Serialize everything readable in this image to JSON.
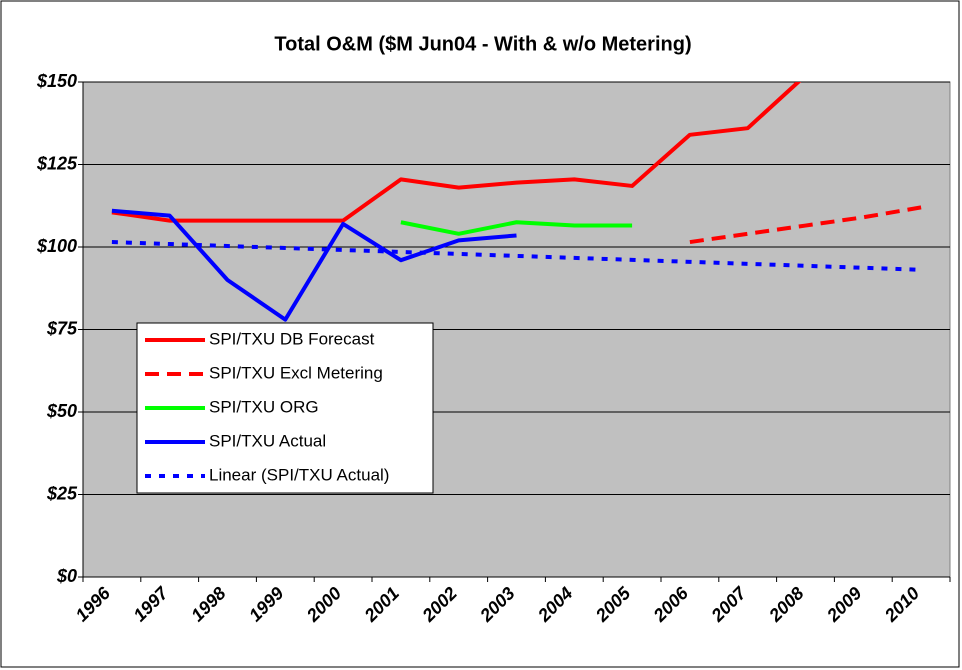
{
  "chart_data": {
    "type": "line",
    "title": "Total O&M ($M Jun04 - With & w/o Metering)",
    "categories": [
      "1996",
      "1997",
      "1998",
      "1999",
      "2000",
      "2001",
      "2002",
      "2003",
      "2004",
      "2005",
      "2006",
      "2007",
      "2008",
      "2009",
      "2010"
    ],
    "series": [
      {
        "name": "SPI/TXU DB Forecast",
        "color": "#ff0000",
        "dash": "solid",
        "values": [
          110.5,
          108,
          108,
          108,
          108,
          120.5,
          118,
          119.5,
          120.5,
          118.5,
          134,
          136,
          152,
          null,
          null
        ]
      },
      {
        "name": "SPI/TXU Excl Metering",
        "color": "#ff0000",
        "dash": "dashed",
        "values": [
          null,
          null,
          null,
          null,
          null,
          null,
          null,
          null,
          null,
          null,
          101.5,
          104,
          106.5,
          109,
          112
        ]
      },
      {
        "name": "SPI/TXU ORG",
        "color": "#00ff00",
        "dash": "solid",
        "values": [
          null,
          null,
          null,
          null,
          null,
          107.5,
          104,
          107.5,
          106.5,
          106.5,
          null,
          null,
          null,
          null,
          null
        ]
      },
      {
        "name": "SPI/TXU Actual",
        "color": "#0000ff",
        "dash": "solid",
        "values": [
          111,
          109.5,
          90,
          78,
          107,
          96,
          102,
          103.5,
          null,
          null,
          null,
          null,
          null,
          null,
          null
        ]
      },
      {
        "name": "Linear (SPI/TXU Actual)",
        "color": "#0000ff",
        "dash": "dotted",
        "values": [
          101.5,
          100.9,
          100.3,
          99.7,
          99.1,
          98.5,
          97.9,
          97.3,
          96.7,
          96.1,
          95.5,
          94.9,
          94.3,
          93.7,
          93.1
        ]
      }
    ],
    "ylim": [
      0,
      150
    ],
    "yticks": [
      {
        "value": 0,
        "label": "$0"
      },
      {
        "value": 25,
        "label": "$25"
      },
      {
        "value": 50,
        "label": "$50"
      },
      {
        "value": 75,
        "label": "$75"
      },
      {
        "value": 100,
        "label": "$100"
      },
      {
        "value": 125,
        "label": "$125"
      },
      {
        "value": 150,
        "label": "$150"
      }
    ],
    "grid": true,
    "plot_background": "#c0c0c0",
    "legend_position": "center left"
  }
}
